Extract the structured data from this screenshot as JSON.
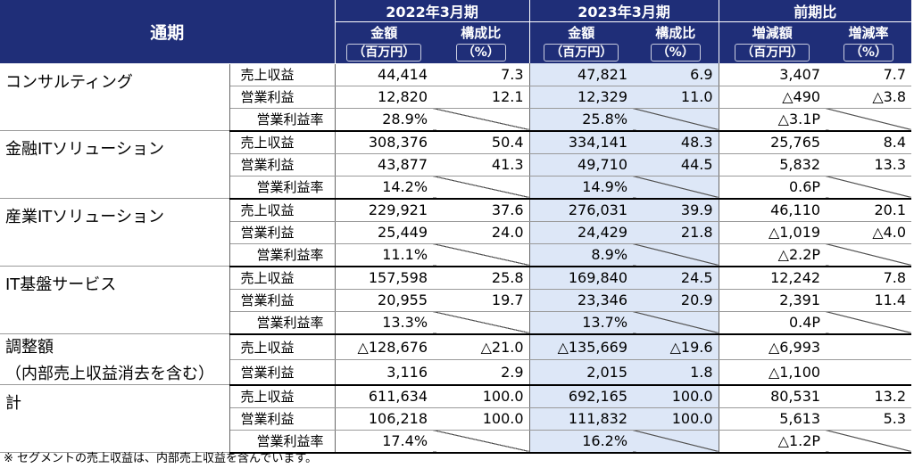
{
  "header": {
    "period": "通期",
    "fy2022": "2022年3月期",
    "fy2023": "2023年3月期",
    "yoy": "前期比",
    "amount": "金額",
    "ratio": "構成比",
    "change_amount": "増減額",
    "change_rate": "増減率",
    "unit_million": "（百万円）",
    "unit_pct": "（%）"
  },
  "segments": [
    {
      "name": "コンサルティング",
      "rows": [
        {
          "label": "売上収益",
          "a22": "44,414",
          "r22": "7.3",
          "a23": "47,821",
          "r23": "6.9",
          "chg": "3,407",
          "rate": "7.7"
        },
        {
          "label": "営業利益",
          "a22": "12,820",
          "r22": "12.1",
          "a23": "12,329",
          "r23": "11.0",
          "chg": "△490",
          "rate": "△3.8"
        },
        {
          "label": "営業利益率",
          "a22": "28.9%",
          "r22": "",
          "a23": "25.8%",
          "r23": "",
          "chg": "△3.1P",
          "rate": ""
        }
      ]
    },
    {
      "name": "金融ITソリューション",
      "rows": [
        {
          "label": "売上収益",
          "a22": "308,376",
          "r22": "50.4",
          "a23": "334,141",
          "r23": "48.3",
          "chg": "25,765",
          "rate": "8.4"
        },
        {
          "label": "営業利益",
          "a22": "43,877",
          "r22": "41.3",
          "a23": "49,710",
          "r23": "44.5",
          "chg": "5,832",
          "rate": "13.3"
        },
        {
          "label": "営業利益率",
          "a22": "14.2%",
          "r22": "",
          "a23": "14.9%",
          "r23": "",
          "chg": "0.6P",
          "rate": ""
        }
      ]
    },
    {
      "name": "産業ITソリューション",
      "rows": [
        {
          "label": "売上収益",
          "a22": "229,921",
          "r22": "37.6",
          "a23": "276,031",
          "r23": "39.9",
          "chg": "46,110",
          "rate": "20.1"
        },
        {
          "label": "営業利益",
          "a22": "25,449",
          "r22": "24.0",
          "a23": "24,429",
          "r23": "21.8",
          "chg": "△1,019",
          "rate": "△4.0"
        },
        {
          "label": "営業利益率",
          "a22": "11.1%",
          "r22": "",
          "a23": "8.9%",
          "r23": "",
          "chg": "△2.2P",
          "rate": ""
        }
      ]
    },
    {
      "name": "IT基盤サービス",
      "rows": [
        {
          "label": "売上収益",
          "a22": "157,598",
          "r22": "25.8",
          "a23": "169,840",
          "r23": "24.5",
          "chg": "12,242",
          "rate": "7.8"
        },
        {
          "label": "営業利益",
          "a22": "20,955",
          "r22": "19.7",
          "a23": "23,346",
          "r23": "20.9",
          "chg": "2,391",
          "rate": "11.4"
        },
        {
          "label": "営業利益率",
          "a22": "13.3%",
          "r22": "",
          "a23": "13.7%",
          "r23": "",
          "chg": "0.4P",
          "rate": ""
        }
      ]
    },
    {
      "name": "調整額",
      "name2": "（内部売上収益消去を含む）",
      "rows": [
        {
          "label": "売上収益",
          "a22": "△128,676",
          "r22": "△21.0",
          "a23": "△135,669",
          "r23": "△19.6",
          "chg": "△6,993",
          "rate": ""
        },
        {
          "label": "営業利益",
          "a22": "3,116",
          "r22": "2.9",
          "a23": "2,015",
          "r23": "1.8",
          "chg": "△1,100",
          "rate": ""
        }
      ]
    },
    {
      "name": "計",
      "rows": [
        {
          "label": "売上収益",
          "a22": "611,634",
          "r22": "100.0",
          "a23": "692,165",
          "r23": "100.0",
          "chg": "80,531",
          "rate": "13.2"
        },
        {
          "label": "営業利益",
          "a22": "106,218",
          "r22": "100.0",
          "a23": "111,832",
          "r23": "100.0",
          "chg": "5,613",
          "rate": "5.3"
        },
        {
          "label": "営業利益率",
          "a22": "17.4%",
          "r22": "",
          "a23": "16.2%",
          "r23": "",
          "chg": "△1.2P",
          "rate": ""
        }
      ]
    }
  ],
  "footnote": "※ セグメントの売上収益は、内部売上収益を含んでいます。",
  "colors": {
    "header_bg": "#1f2e78",
    "highlight": "#dde7f7"
  }
}
